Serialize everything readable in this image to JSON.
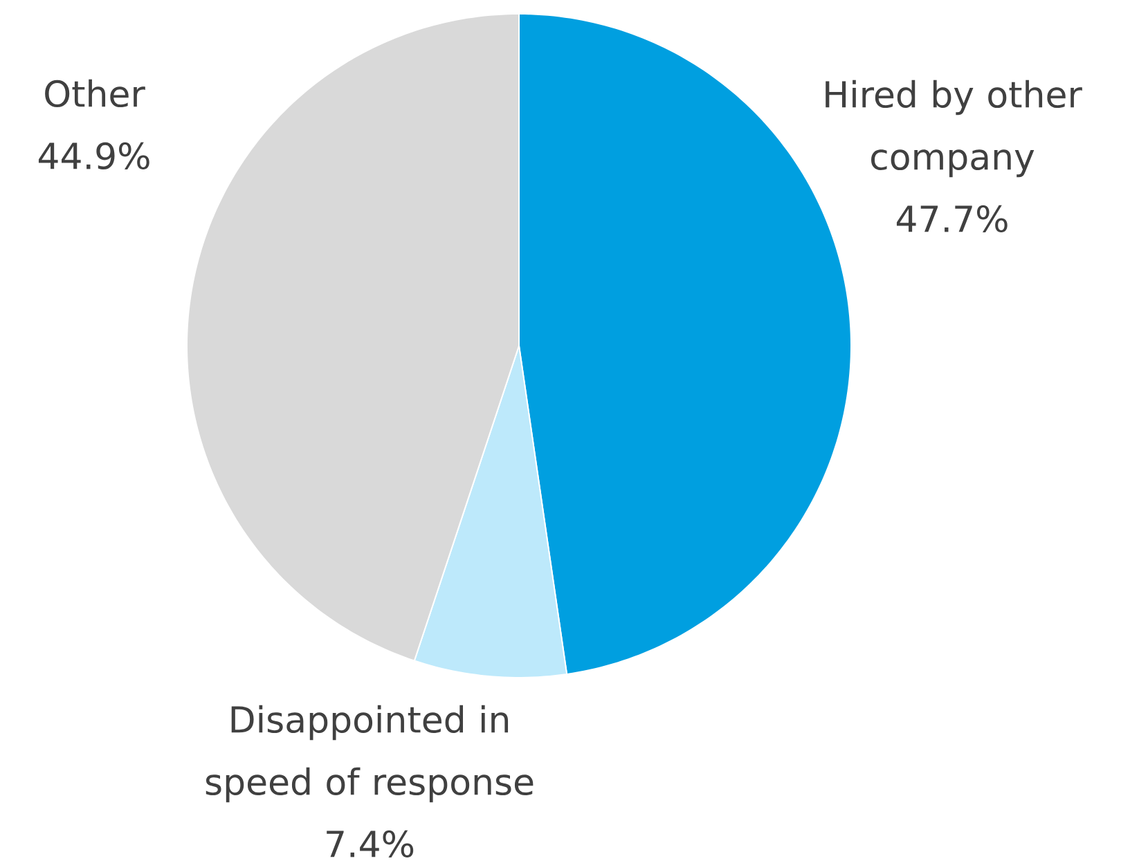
{
  "chart_data": {
    "type": "pie",
    "categories": [
      "Hired by other company",
      "Disappointed in speed of response",
      "Other"
    ],
    "values": [
      47.7,
      7.4,
      44.9
    ],
    "colors": [
      "#009fe0",
      "#bde9fb",
      "#d9d9d9"
    ],
    "value_labels": [
      "47.7%",
      "7.4%",
      "44.9%"
    ]
  }
}
